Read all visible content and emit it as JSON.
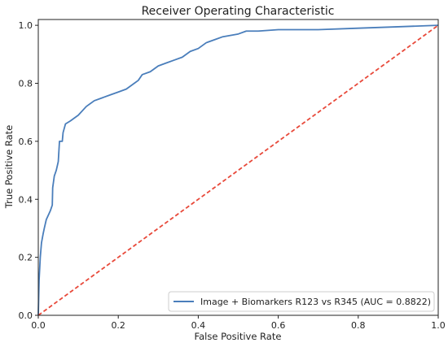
{
  "chart_data": {
    "type": "line",
    "title": "Receiver Operating Characteristic",
    "xlabel": "False Positive Rate",
    "ylabel": "True Positive Rate",
    "xlim": [
      0,
      1
    ],
    "ylim": [
      0,
      1.02
    ],
    "xticks": [
      "0.0",
      "0.2",
      "0.4",
      "0.6",
      "0.8",
      "1.0"
    ],
    "yticks": [
      "0.0",
      "0.2",
      "0.4",
      "0.6",
      "0.8",
      "1.0"
    ],
    "grid": false,
    "legend_position": "lower-right",
    "series": [
      {
        "name": "Image + Biomarkers R123 vs R345 (AUC = 0.8822)",
        "color": "#4a7ebb",
        "style": "solid",
        "points": [
          [
            0.0,
            0.0
          ],
          [
            0.002,
            0.12
          ],
          [
            0.005,
            0.2
          ],
          [
            0.008,
            0.25
          ],
          [
            0.012,
            0.28
          ],
          [
            0.015,
            0.3
          ],
          [
            0.02,
            0.33
          ],
          [
            0.03,
            0.36
          ],
          [
            0.035,
            0.38
          ],
          [
            0.036,
            0.44
          ],
          [
            0.04,
            0.48
          ],
          [
            0.045,
            0.5
          ],
          [
            0.05,
            0.53
          ],
          [
            0.053,
            0.6
          ],
          [
            0.06,
            0.6
          ],
          [
            0.062,
            0.63
          ],
          [
            0.068,
            0.66
          ],
          [
            0.08,
            0.67
          ],
          [
            0.1,
            0.69
          ],
          [
            0.12,
            0.72
          ],
          [
            0.14,
            0.74
          ],
          [
            0.16,
            0.75
          ],
          [
            0.18,
            0.76
          ],
          [
            0.2,
            0.77
          ],
          [
            0.22,
            0.78
          ],
          [
            0.24,
            0.8
          ],
          [
            0.25,
            0.81
          ],
          [
            0.26,
            0.83
          ],
          [
            0.28,
            0.84
          ],
          [
            0.3,
            0.86
          ],
          [
            0.32,
            0.87
          ],
          [
            0.34,
            0.88
          ],
          [
            0.36,
            0.89
          ],
          [
            0.38,
            0.91
          ],
          [
            0.4,
            0.92
          ],
          [
            0.42,
            0.94
          ],
          [
            0.44,
            0.95
          ],
          [
            0.46,
            0.96
          ],
          [
            0.48,
            0.965
          ],
          [
            0.5,
            0.97
          ],
          [
            0.52,
            0.98
          ],
          [
            0.55,
            0.98
          ],
          [
            0.6,
            0.985
          ],
          [
            0.7,
            0.985
          ],
          [
            0.8,
            0.99
          ],
          [
            0.9,
            0.995
          ],
          [
            1.0,
            1.0
          ]
        ]
      },
      {
        "name": "",
        "color": "#e8493a",
        "style": "dashed",
        "points": [
          [
            0.0,
            0.0
          ],
          [
            1.0,
            1.0
          ]
        ]
      }
    ]
  }
}
